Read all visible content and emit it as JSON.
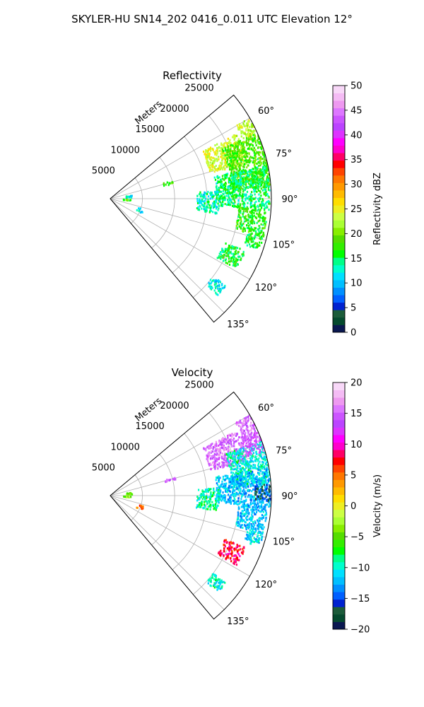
{
  "figure": {
    "suptitle": "SKYLER-HU  SN14_202  0416_0.011 UTC Elevation 12°"
  },
  "chart_data": [
    {
      "type": "heatmap",
      "subtype": "polar-sector (PPI radar scan)",
      "title": "Reflectivity",
      "range_label": "Meters",
      "range_ticks": [
        5000,
        10000,
        15000,
        20000,
        25000
      ],
      "range_tick_labels": [
        "5000",
        "10000",
        "15000",
        "20000",
        "25000"
      ],
      "range_lim": [
        0,
        25000
      ],
      "angle_lim_deg": [
        50,
        140
      ],
      "angle_ticks_deg": [
        60,
        75,
        90,
        105,
        120,
        135
      ],
      "angle_tick_labels": [
        "60°",
        "75°",
        "90°",
        "105°",
        "120°",
        "135°"
      ],
      "grid": true,
      "colorbar": {
        "label": "Reflectivity dBZ",
        "lim": [
          0,
          50
        ],
        "ticks": [
          0,
          5,
          10,
          15,
          20,
          25,
          30,
          35,
          40,
          45,
          50
        ],
        "tick_labels": [
          "0",
          "5",
          "10",
          "15",
          "20",
          "25",
          "30",
          "35",
          "40",
          "45",
          "50"
        ],
        "colors": [
          "#0a1850",
          "#054a2e",
          "#1c5c3a",
          "#0022d0",
          "#0060ff",
          "#0090ff",
          "#00bfff",
          "#00e0ff",
          "#00ffcc",
          "#00ff88",
          "#00ff00",
          "#33ee00",
          "#55dd00",
          "#88ee00",
          "#aaff33",
          "#ccff44",
          "#eeee22",
          "#ffdd00",
          "#ffbb00",
          "#ff9900",
          "#ff7700",
          "#ff4400",
          "#ff0000",
          "#ff0066",
          "#ff00cc",
          "#ff00ff",
          "#dd33ff",
          "#bb44ff",
          "#cc55ff",
          "#dd77ff",
          "#ee99f0",
          "#f4bbf4",
          "#f8d8f8"
        ]
      },
      "echo_regions": [
        {
          "az": [
            60,
            66
          ],
          "r": [
            22500,
            25000
          ],
          "value": 23
        },
        {
          "az": [
            63,
            76
          ],
          "r": [
            16000,
            22000
          ],
          "value": 24
        },
        {
          "az": [
            66,
            86
          ],
          "r": [
            19000,
            25000
          ],
          "value": 18
        },
        {
          "az": [
            78,
            94
          ],
          "r": [
            16500,
            24800
          ],
          "value": 15
        },
        {
          "az": [
            94,
            104
          ],
          "r": [
            20000,
            24500
          ],
          "value": 17
        },
        {
          "az": [
            104,
            109
          ],
          "r": [
            22000,
            24500
          ],
          "value": 16
        },
        {
          "az": [
            86,
            98
          ],
          "r": [
            13500,
            17000
          ],
          "value": 13
        },
        {
          "az": [
            111,
            119
          ],
          "r": [
            19000,
            22500
          ],
          "value": 16
        },
        {
          "az": [
            127,
            132
          ],
          "r": [
            20000,
            22500
          ],
          "value": 12
        },
        {
          "az": [
            82,
            87
          ],
          "r": [
            2500,
            3500
          ],
          "value": 12
        },
        {
          "az": [
            93,
            96
          ],
          "r": [
            2000,
            3200
          ],
          "value": 18
        },
        {
          "az": [
            108,
            115
          ],
          "r": [
            4500,
            5500
          ],
          "value": 11
        },
        {
          "az": [
            74,
            77
          ],
          "r": [
            8500,
            10500
          ],
          "value": 18
        }
      ]
    },
    {
      "type": "heatmap",
      "subtype": "polar-sector (PPI radar scan)",
      "title": "Velocity",
      "range_label": "Meters",
      "range_ticks": [
        5000,
        10000,
        15000,
        20000,
        25000
      ],
      "range_tick_labels": [
        "5000",
        "10000",
        "15000",
        "20000",
        "25000"
      ],
      "range_lim": [
        0,
        25000
      ],
      "angle_lim_deg": [
        50,
        140
      ],
      "angle_ticks_deg": [
        60,
        75,
        90,
        105,
        120,
        135
      ],
      "angle_tick_labels": [
        "60°",
        "75°",
        "90°",
        "105°",
        "120°",
        "135°"
      ],
      "grid": true,
      "colorbar": {
        "label": "Velocity (m/s)",
        "lim": [
          -20,
          20
        ],
        "ticks": [
          -20,
          -15,
          -10,
          -5,
          0,
          5,
          10,
          15,
          20
        ],
        "tick_labels": [
          "−20",
          "−15",
          "−10",
          "−5",
          "0",
          "5",
          "10",
          "15",
          "20"
        ],
        "colors": [
          "#0a1850",
          "#054a2e",
          "#1c5c3a",
          "#0022d0",
          "#0060ff",
          "#0090ff",
          "#00bfff",
          "#00e0ff",
          "#00ffcc",
          "#00ff88",
          "#00ff00",
          "#33ee00",
          "#55dd00",
          "#88ee00",
          "#aaff33",
          "#ccff44",
          "#eeee22",
          "#ffdd00",
          "#ffbb00",
          "#ff9900",
          "#ff7700",
          "#ff4400",
          "#ff0000",
          "#ff0066",
          "#ff00cc",
          "#ff00ff",
          "#dd33ff",
          "#bb44ff",
          "#cc55ff",
          "#dd77ff",
          "#ee99f0",
          "#f4bbf4",
          "#f8d8f8"
        ]
      },
      "echo_regions": [
        {
          "az": [
            60,
            66
          ],
          "r": [
            22500,
            25000
          ],
          "value": 15
        },
        {
          "az": [
            63,
            76
          ],
          "r": [
            16000,
            22000
          ],
          "value": 15
        },
        {
          "az": [
            70,
            86
          ],
          "r": [
            19000,
            25000
          ],
          "value": -10
        },
        {
          "az": [
            66,
            74
          ],
          "r": [
            22000,
            25000
          ],
          "value": 14
        },
        {
          "az": [
            80,
            94
          ],
          "r": [
            16500,
            24800
          ],
          "value": -12
        },
        {
          "az": [
            86,
            92
          ],
          "r": [
            22500,
            25000
          ],
          "value": -16
        },
        {
          "az": [
            94,
            104
          ],
          "r": [
            20000,
            24500
          ],
          "value": -12
        },
        {
          "az": [
            104,
            109
          ],
          "r": [
            22000,
            24500
          ],
          "value": -11
        },
        {
          "az": [
            86,
            98
          ],
          "r": [
            13500,
            17000
          ],
          "value": -9
        },
        {
          "az": [
            111,
            119
          ],
          "r": [
            19000,
            22500
          ],
          "value": 8
        },
        {
          "az": [
            127,
            132
          ],
          "r": [
            20000,
            22500
          ],
          "value": -10
        },
        {
          "az": [
            82,
            87
          ],
          "r": [
            2500,
            3500
          ],
          "value": -5
        },
        {
          "az": [
            93,
            96
          ],
          "r": [
            2000,
            3200
          ],
          "value": -4
        },
        {
          "az": [
            108,
            115
          ],
          "r": [
            4500,
            5500
          ],
          "value": 5
        },
        {
          "az": [
            74,
            77
          ],
          "r": [
            8500,
            10500
          ],
          "value": 15
        }
      ]
    }
  ]
}
